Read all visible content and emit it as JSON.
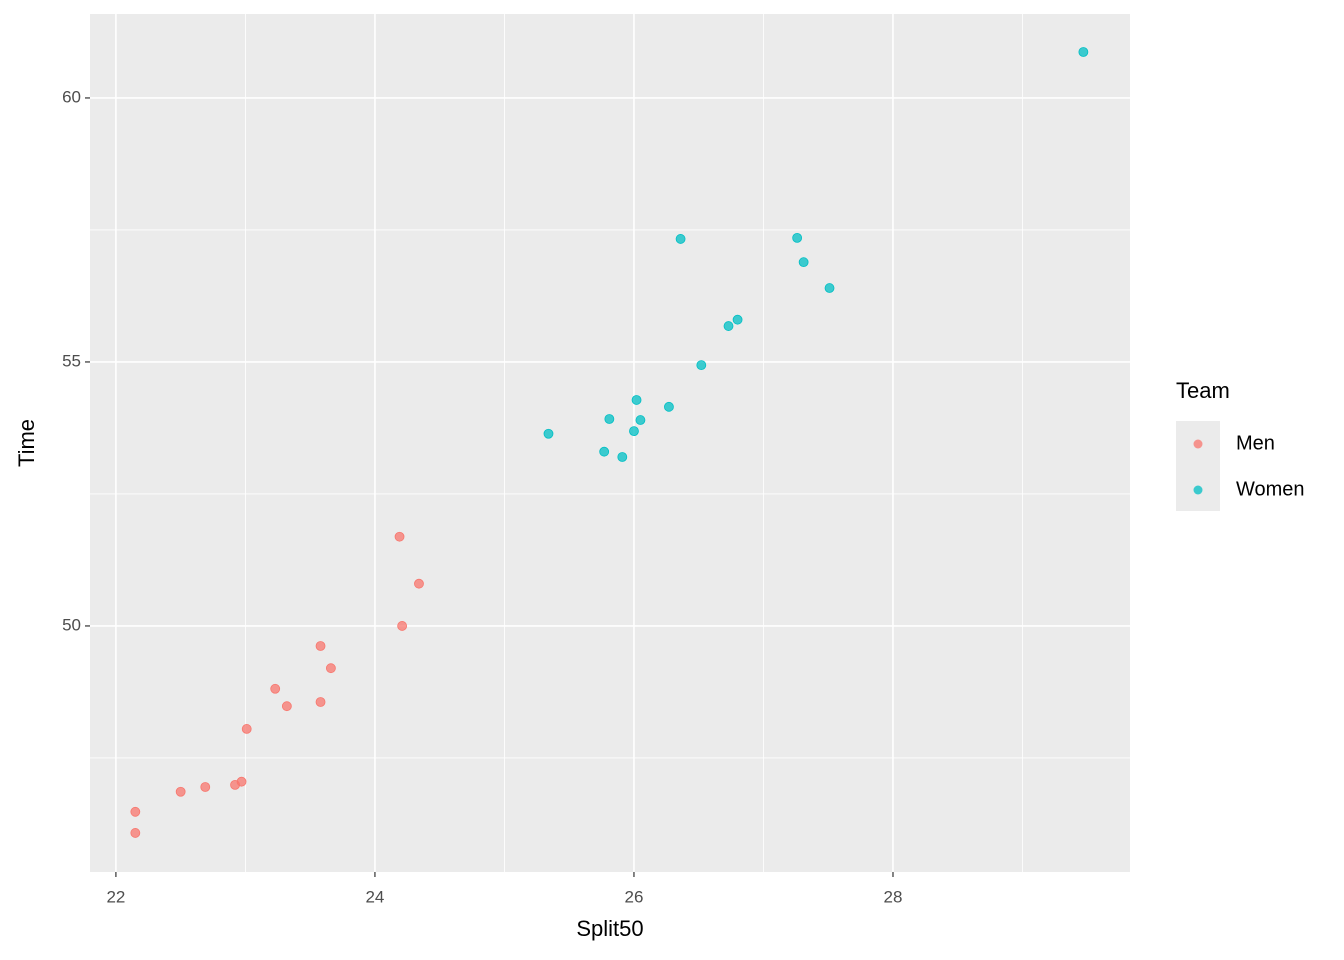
{
  "chart_data": {
    "type": "scatter",
    "xlabel": "Split50",
    "ylabel": "Time",
    "legend_title": "Team",
    "legend": "right",
    "grid": true,
    "xlim": [
      21.8,
      29.83
    ],
    "ylim": [
      45.34,
      61.59
    ],
    "xticks": [
      22,
      24,
      26,
      28
    ],
    "yticks": [
      50,
      55,
      60
    ],
    "minor_xticks": [
      23,
      25,
      27,
      29
    ],
    "minor_yticks": [
      47.5,
      52.5,
      57.5
    ],
    "series": [
      {
        "name": "Men",
        "color": "#F8766D",
        "x": [
          22.15,
          22.15,
          22.5,
          22.69,
          22.92,
          22.97,
          23.01,
          23.23,
          23.32,
          23.58,
          23.58,
          23.66,
          24.19,
          24.21,
          24.34
        ],
        "values": [
          46.48,
          46.08,
          46.86,
          46.95,
          46.99,
          47.05,
          48.05,
          48.81,
          48.48,
          49.62,
          48.56,
          49.2,
          51.69,
          50.0,
          50.8
        ]
      },
      {
        "name": "Women",
        "color": "#00BFC4",
        "x": [
          25.34,
          25.77,
          25.81,
          25.91,
          26.0,
          26.02,
          26.05,
          26.27,
          26.36,
          26.52,
          26.73,
          26.8,
          27.26,
          27.31,
          27.51,
          29.47
        ],
        "values": [
          53.64,
          53.3,
          53.92,
          53.2,
          53.69,
          54.28,
          53.9,
          54.15,
          57.33,
          54.94,
          55.68,
          55.8,
          57.35,
          56.89,
          56.4,
          60.87
        ]
      }
    ]
  }
}
